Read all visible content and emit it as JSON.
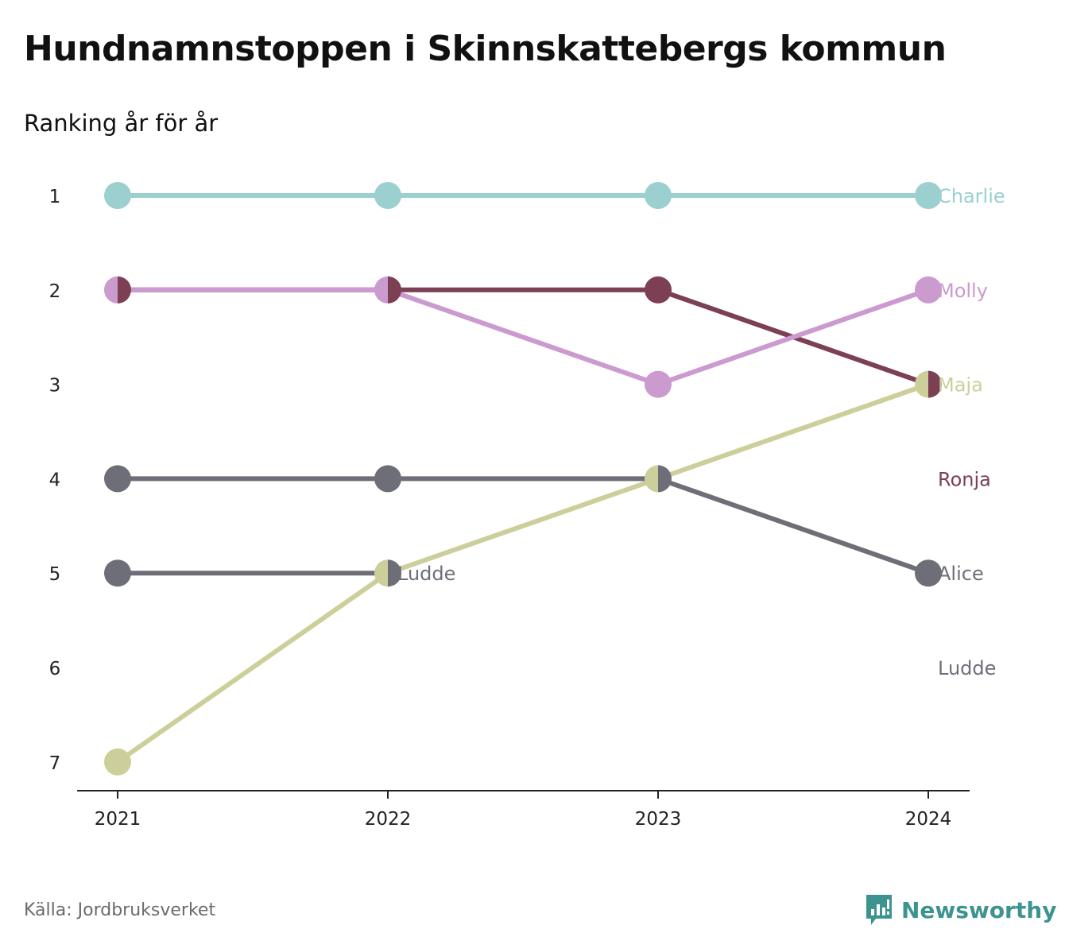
{
  "header": {
    "title": "Hundnamnstoppen i Skinnskattebergs kommun",
    "subtitle": "Ranking år för år"
  },
  "footer": {
    "source": "Källa: Jordbruksverket",
    "brand": "Newsworthy",
    "brand_icon": "bar-chart-speech-bubble-icon",
    "brand_color": "#3d938f"
  },
  "chart_data": {
    "type": "line",
    "subtype": "bump",
    "x": [
      "2021",
      "2022",
      "2023",
      "2024"
    ],
    "y_ticks": [
      "1",
      "2",
      "3",
      "4",
      "5",
      "6",
      "7"
    ],
    "ylim": [
      1,
      7
    ],
    "y_inverted": true,
    "grid": false,
    "series": [
      {
        "name": "Charlie",
        "color": "#9ccfcf",
        "values": [
          1,
          1,
          1,
          1
        ]
      },
      {
        "name": "Molly",
        "color": "#cb9acf",
        "values": [
          2,
          2,
          3,
          2
        ]
      },
      {
        "name": "Ronja",
        "color": "#7c3f54",
        "values": [
          2,
          2,
          2,
          3
        ]
      },
      {
        "name": "Maja",
        "color": "#cdcf9a",
        "values": [
          7,
          5,
          4,
          3
        ]
      },
      {
        "name": "Alice",
        "color": "#6e6e78",
        "values": [
          4,
          4,
          4,
          5
        ]
      },
      {
        "name": "Ludde",
        "color": "#6e6e78",
        "values": [
          5,
          5,
          null,
          null
        ]
      }
    ],
    "end_labels": [
      {
        "text": "Charlie",
        "rank": 1,
        "color": "#9ccfcf"
      },
      {
        "text": "Molly",
        "rank": 2,
        "color": "#cb9acf"
      },
      {
        "text": "Maja",
        "rank": 3,
        "color": "#cdcf9a"
      },
      {
        "text": "Ronja",
        "rank": 4,
        "color": "#7c3f54"
      },
      {
        "text": "Alice",
        "rank": 5,
        "color": "#6e6e78"
      },
      {
        "text": "Ludde",
        "rank": 6,
        "color": "#6e6e78"
      }
    ],
    "inline_labels": [
      {
        "text": "Ludde",
        "x": "2022",
        "rank": 5,
        "color": "#6e6e78"
      }
    ],
    "split_markers": [
      {
        "x": "2021",
        "rank": 2,
        "left": "#cb9acf",
        "right": "#7c3f54"
      },
      {
        "x": "2022",
        "rank": 2,
        "left": "#cb9acf",
        "right": "#7c3f54"
      },
      {
        "x": "2022",
        "rank": 5,
        "left": "#cdcf9a",
        "right": "#6e6e78"
      },
      {
        "x": "2023",
        "rank": 4,
        "left": "#cdcf9a",
        "right": "#6e6e78"
      },
      {
        "x": "2024",
        "rank": 3,
        "left": "#cdcf9a",
        "right": "#7c3f54"
      }
    ]
  }
}
